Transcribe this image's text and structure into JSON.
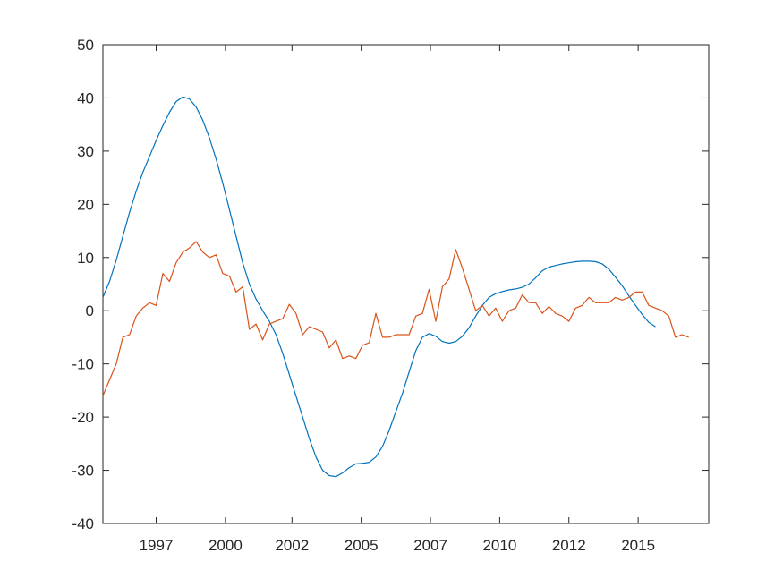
{
  "chart_data": {
    "type": "line",
    "title": "",
    "xlabel": "",
    "ylabel": "",
    "xlim": [
      1995.0,
      2017.75
    ],
    "ylim": [
      -40,
      50
    ],
    "grid": false,
    "legend": "none",
    "x_ticks": [
      {
        "value": 1997.0,
        "label": "1997"
      },
      {
        "value": 1999.6,
        "label": "2000"
      },
      {
        "value": 2002.1,
        "label": "2002"
      },
      {
        "value": 2004.7,
        "label": "2005"
      },
      {
        "value": 2007.3,
        "label": "2007"
      },
      {
        "value": 2009.9,
        "label": "2010"
      },
      {
        "value": 2012.5,
        "label": "2012"
      },
      {
        "value": 2015.1,
        "label": "2015"
      }
    ],
    "y_ticks": [
      {
        "value": 50,
        "label": "50"
      },
      {
        "value": 40,
        "label": "40"
      },
      {
        "value": 30,
        "label": "30"
      },
      {
        "value": 20,
        "label": "20"
      },
      {
        "value": 10,
        "label": "10"
      },
      {
        "value": 0,
        "label": "0"
      },
      {
        "value": -10,
        "label": "-10"
      },
      {
        "value": -20,
        "label": "-20"
      },
      {
        "value": -30,
        "label": "-30"
      },
      {
        "value": -40,
        "label": "-40"
      }
    ],
    "series": [
      {
        "color": "#0072BD",
        "points": [
          [
            1995.0,
            2.5
          ],
          [
            1995.25,
            5.5
          ],
          [
            1995.5,
            9.5
          ],
          [
            1995.75,
            14.0
          ],
          [
            1996.0,
            18.5
          ],
          [
            1996.25,
            22.5
          ],
          [
            1996.5,
            26.0
          ],
          [
            1996.75,
            29.0
          ],
          [
            1997.0,
            32.0
          ],
          [
            1997.25,
            34.8
          ],
          [
            1997.5,
            37.3
          ],
          [
            1997.75,
            39.3
          ],
          [
            1998.0,
            40.2
          ],
          [
            1998.25,
            39.8
          ],
          [
            1998.5,
            38.3
          ],
          [
            1998.75,
            35.8
          ],
          [
            1999.0,
            32.5
          ],
          [
            1999.25,
            28.5
          ],
          [
            1999.5,
            24.0
          ],
          [
            1999.75,
            19.0
          ],
          [
            2000.0,
            14.0
          ],
          [
            2000.25,
            9.0
          ],
          [
            2000.5,
            5.0
          ],
          [
            2000.75,
            2.2
          ],
          [
            2001.0,
            0.0
          ],
          [
            2001.25,
            -2.0
          ],
          [
            2001.5,
            -4.5
          ],
          [
            2001.75,
            -8.0
          ],
          [
            2002.0,
            -12.0
          ],
          [
            2002.25,
            -16.0
          ],
          [
            2002.5,
            -20.0
          ],
          [
            2002.75,
            -24.0
          ],
          [
            2003.0,
            -27.5
          ],
          [
            2003.25,
            -30.0
          ],
          [
            2003.5,
            -31.0
          ],
          [
            2003.75,
            -31.2
          ],
          [
            2004.0,
            -30.5
          ],
          [
            2004.25,
            -29.5
          ],
          [
            2004.5,
            -28.8
          ],
          [
            2004.75,
            -28.7
          ],
          [
            2005.0,
            -28.5
          ],
          [
            2005.25,
            -27.5
          ],
          [
            2005.5,
            -25.5
          ],
          [
            2005.75,
            -22.5
          ],
          [
            2006.0,
            -19.0
          ],
          [
            2006.25,
            -15.5
          ],
          [
            2006.5,
            -11.5
          ],
          [
            2006.75,
            -7.5
          ],
          [
            2007.0,
            -5.0
          ],
          [
            2007.25,
            -4.3
          ],
          [
            2007.5,
            -4.8
          ],
          [
            2007.75,
            -5.8
          ],
          [
            2008.0,
            -6.1
          ],
          [
            2008.25,
            -5.8
          ],
          [
            2008.5,
            -4.8
          ],
          [
            2008.75,
            -3.2
          ],
          [
            2009.0,
            -1.0
          ],
          [
            2009.25,
            1.0
          ],
          [
            2009.5,
            2.5
          ],
          [
            2009.75,
            3.2
          ],
          [
            2010.0,
            3.6
          ],
          [
            2010.25,
            3.9
          ],
          [
            2010.5,
            4.1
          ],
          [
            2010.75,
            4.4
          ],
          [
            2011.0,
            5.0
          ],
          [
            2011.25,
            6.2
          ],
          [
            2011.5,
            7.5
          ],
          [
            2011.75,
            8.2
          ],
          [
            2012.0,
            8.5
          ],
          [
            2012.25,
            8.8
          ],
          [
            2012.5,
            9.0
          ],
          [
            2012.75,
            9.2
          ],
          [
            2013.0,
            9.3
          ],
          [
            2013.25,
            9.3
          ],
          [
            2013.5,
            9.2
          ],
          [
            2013.75,
            8.8
          ],
          [
            2014.0,
            7.8
          ],
          [
            2014.25,
            6.3
          ],
          [
            2014.5,
            4.7
          ],
          [
            2014.75,
            2.8
          ],
          [
            2015.0,
            1.0
          ],
          [
            2015.25,
            -0.7
          ],
          [
            2015.5,
            -2.2
          ],
          [
            2015.75,
            -3.0
          ]
        ]
      },
      {
        "color": "#D95319",
        "points": [
          [
            1995.0,
            -16.0
          ],
          [
            1995.25,
            -13.0
          ],
          [
            1995.5,
            -10.0
          ],
          [
            1995.75,
            -5.0
          ],
          [
            1996.0,
            -4.5
          ],
          [
            1996.25,
            -1.0
          ],
          [
            1996.5,
            0.5
          ],
          [
            1996.75,
            1.5
          ],
          [
            1997.0,
            1.0
          ],
          [
            1997.25,
            7.0
          ],
          [
            1997.5,
            5.5
          ],
          [
            1997.75,
            9.0
          ],
          [
            1998.0,
            11.0
          ],
          [
            1998.25,
            11.8
          ],
          [
            1998.5,
            13.0
          ],
          [
            1998.75,
            11.0
          ],
          [
            1999.0,
            10.0
          ],
          [
            1999.25,
            10.5
          ],
          [
            1999.5,
            7.0
          ],
          [
            1999.75,
            6.5
          ],
          [
            2000.0,
            3.5
          ],
          [
            2000.25,
            4.5
          ],
          [
            2000.5,
            -3.5
          ],
          [
            2000.75,
            -2.5
          ],
          [
            2001.0,
            -5.5
          ],
          [
            2001.25,
            -2.5
          ],
          [
            2001.5,
            -2.0
          ],
          [
            2001.75,
            -1.5
          ],
          [
            2002.0,
            1.2
          ],
          [
            2002.25,
            -0.5
          ],
          [
            2002.5,
            -4.5
          ],
          [
            2002.75,
            -3.0
          ],
          [
            2003.0,
            -3.5
          ],
          [
            2003.25,
            -4.0
          ],
          [
            2003.5,
            -7.0
          ],
          [
            2003.75,
            -5.5
          ],
          [
            2004.0,
            -9.0
          ],
          [
            2004.25,
            -8.5
          ],
          [
            2004.5,
            -9.0
          ],
          [
            2004.75,
            -6.5
          ],
          [
            2005.0,
            -6.0
          ],
          [
            2005.25,
            -0.5
          ],
          [
            2005.5,
            -5.0
          ],
          [
            2005.75,
            -5.0
          ],
          [
            2006.0,
            -4.5
          ],
          [
            2006.25,
            -4.5
          ],
          [
            2006.5,
            -4.5
          ],
          [
            2006.75,
            -1.0
          ],
          [
            2007.0,
            -0.5
          ],
          [
            2007.25,
            4.0
          ],
          [
            2007.5,
            -2.0
          ],
          [
            2007.75,
            4.5
          ],
          [
            2008.0,
            6.0
          ],
          [
            2008.25,
            11.5
          ],
          [
            2008.5,
            8.0
          ],
          [
            2008.75,
            4.0
          ],
          [
            2009.0,
            0.0
          ],
          [
            2009.25,
            1.0
          ],
          [
            2009.5,
            -1.0
          ],
          [
            2009.75,
            0.5
          ],
          [
            2010.0,
            -2.0
          ],
          [
            2010.25,
            0.0
          ],
          [
            2010.5,
            0.5
          ],
          [
            2010.75,
            3.0
          ],
          [
            2011.0,
            1.5
          ],
          [
            2011.25,
            1.5
          ],
          [
            2011.5,
            -0.5
          ],
          [
            2011.75,
            0.8
          ],
          [
            2012.0,
            -0.5
          ],
          [
            2012.25,
            -1.0
          ],
          [
            2012.5,
            -2.0
          ],
          [
            2012.75,
            0.5
          ],
          [
            2013.0,
            1.0
          ],
          [
            2013.25,
            2.5
          ],
          [
            2013.5,
            1.5
          ],
          [
            2013.75,
            1.5
          ],
          [
            2014.0,
            1.5
          ],
          [
            2014.25,
            2.5
          ],
          [
            2014.5,
            2.0
          ],
          [
            2014.75,
            2.5
          ],
          [
            2015.0,
            3.5
          ],
          [
            2015.25,
            3.5
          ],
          [
            2015.5,
            1.0
          ],
          [
            2015.75,
            0.5
          ],
          [
            2016.0,
            0.0
          ],
          [
            2016.25,
            -1.0
          ],
          [
            2016.5,
            -5.0
          ],
          [
            2016.75,
            -4.5
          ],
          [
            2017.0,
            -5.0
          ]
        ]
      }
    ]
  }
}
